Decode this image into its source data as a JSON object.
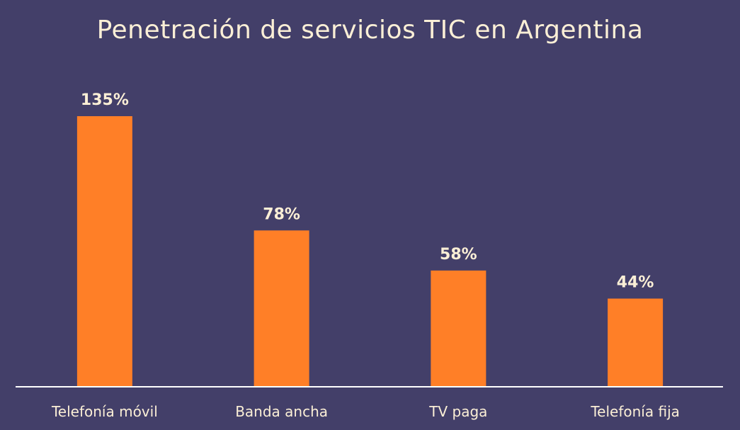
{
  "colors": {
    "background": "#433F69",
    "bar": "#FF7F27",
    "text": "#FBEFD6",
    "axis": "#FFFFFF"
  },
  "chart_data": {
    "type": "bar",
    "title": "Penetración de servicios TIC en Argentina",
    "xlabel": "",
    "ylabel": "",
    "ylim": [
      0,
      145
    ],
    "grid": false,
    "categories": [
      "Telefonía móvil",
      "Banda ancha",
      "TV paga",
      "Telefonía fija"
    ],
    "values": [
      135,
      78,
      58,
      44
    ],
    "value_labels": [
      "135%",
      "78%",
      "58%",
      "44%"
    ]
  }
}
